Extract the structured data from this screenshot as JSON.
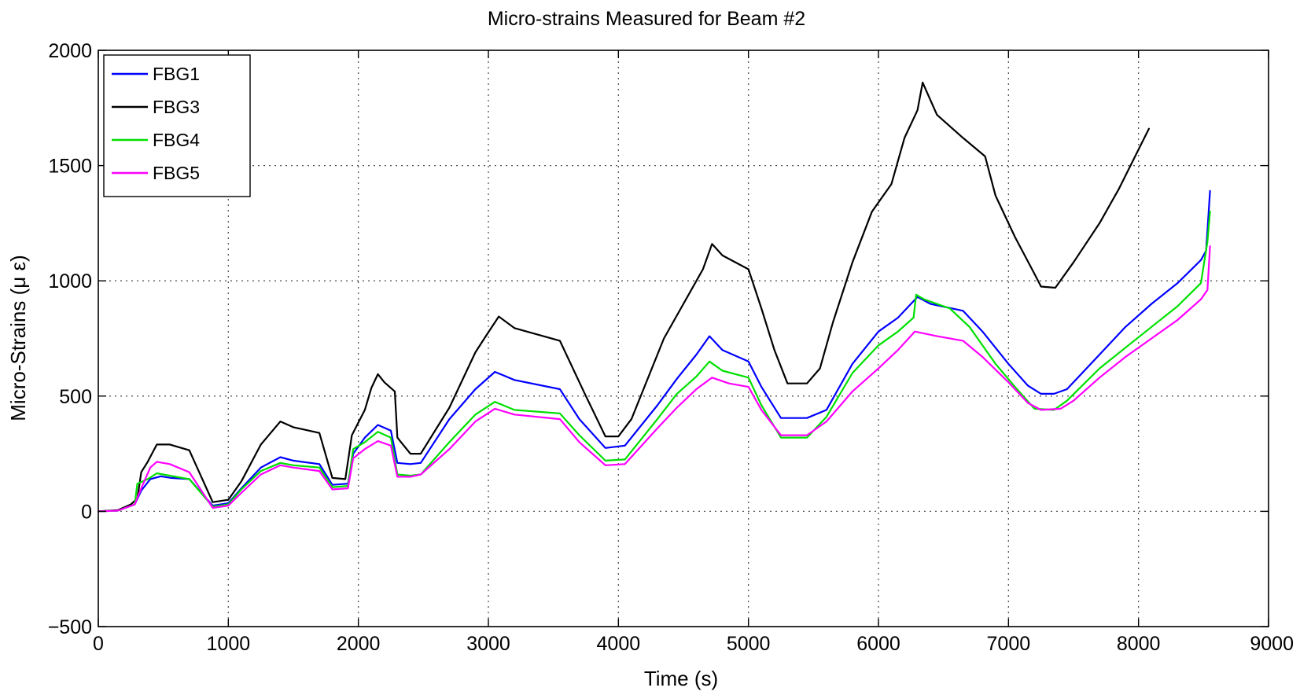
{
  "chart_data": {
    "type": "line",
    "title": "Micro-strains Measured for Beam #2",
    "xlabel": "Time (s)",
    "ylabel": "Micro-Strains (μ ε)",
    "xlim": [
      0,
      9000
    ],
    "ylim": [
      -500,
      2000
    ],
    "x_ticks": [
      0,
      1000,
      2000,
      3000,
      4000,
      5000,
      6000,
      7000,
      8000,
      9000
    ],
    "y_ticks": [
      -500,
      0,
      500,
      1000,
      1500,
      2000
    ],
    "x_tick_labels": [
      "0",
      "1000",
      "2000",
      "3000",
      "4000",
      "5000",
      "6000",
      "7000",
      "8000",
      "9000"
    ],
    "y_tick_labels": [
      "−500",
      "0",
      "500",
      "1000",
      "1500",
      "2000"
    ],
    "grid": true,
    "legend_position": "top-left",
    "series": [
      {
        "name": "FBG1",
        "color": "#0000ff",
        "points": [
          [
            0,
            0
          ],
          [
            150,
            3
          ],
          [
            280,
            30
          ],
          [
            330,
            90
          ],
          [
            400,
            140
          ],
          [
            480,
            152
          ],
          [
            560,
            145
          ],
          [
            700,
            140
          ],
          [
            880,
            25
          ],
          [
            1000,
            35
          ],
          [
            1100,
            100
          ],
          [
            1250,
            190
          ],
          [
            1400,
            235
          ],
          [
            1500,
            220
          ],
          [
            1700,
            205
          ],
          [
            1800,
            115
          ],
          [
            1920,
            120
          ],
          [
            1960,
            250
          ],
          [
            2050,
            320
          ],
          [
            2150,
            375
          ],
          [
            2250,
            350
          ],
          [
            2300,
            210
          ],
          [
            2400,
            205
          ],
          [
            2480,
            210
          ],
          [
            2700,
            400
          ],
          [
            2900,
            530
          ],
          [
            3050,
            605
          ],
          [
            3200,
            570
          ],
          [
            3550,
            530
          ],
          [
            3700,
            400
          ],
          [
            3900,
            275
          ],
          [
            4050,
            285
          ],
          [
            4300,
            460
          ],
          [
            4450,
            575
          ],
          [
            4600,
            680
          ],
          [
            4700,
            760
          ],
          [
            4800,
            700
          ],
          [
            5000,
            650
          ],
          [
            5100,
            540
          ],
          [
            5250,
            405
          ],
          [
            5450,
            405
          ],
          [
            5600,
            440
          ],
          [
            5800,
            640
          ],
          [
            6000,
            780
          ],
          [
            6150,
            840
          ],
          [
            6300,
            930
          ],
          [
            6400,
            900
          ],
          [
            6650,
            870
          ],
          [
            6800,
            780
          ],
          [
            7000,
            640
          ],
          [
            7150,
            545
          ],
          [
            7250,
            510
          ],
          [
            7350,
            510
          ],
          [
            7450,
            530
          ],
          [
            7700,
            680
          ],
          [
            7900,
            800
          ],
          [
            8100,
            900
          ],
          [
            8300,
            990
          ],
          [
            8480,
            1090
          ],
          [
            8520,
            1130
          ],
          [
            8540,
            1300
          ],
          [
            8550,
            1390
          ]
        ]
      },
      {
        "name": "FBG3",
        "color": "#000000",
        "points": [
          [
            0,
            0
          ],
          [
            150,
            5
          ],
          [
            250,
            30
          ],
          [
            300,
            55
          ],
          [
            330,
            170
          ],
          [
            380,
            215
          ],
          [
            450,
            290
          ],
          [
            550,
            290
          ],
          [
            700,
            265
          ],
          [
            880,
            40
          ],
          [
            1000,
            50
          ],
          [
            1100,
            130
          ],
          [
            1250,
            290
          ],
          [
            1400,
            390
          ],
          [
            1500,
            365
          ],
          [
            1700,
            340
          ],
          [
            1800,
            145
          ],
          [
            1900,
            140
          ],
          [
            1950,
            330
          ],
          [
            2050,
            440
          ],
          [
            2100,
            535
          ],
          [
            2150,
            595
          ],
          [
            2200,
            560
          ],
          [
            2280,
            520
          ],
          [
            2300,
            320
          ],
          [
            2400,
            250
          ],
          [
            2480,
            250
          ],
          [
            2700,
            450
          ],
          [
            2900,
            690
          ],
          [
            2980,
            760
          ],
          [
            3080,
            845
          ],
          [
            3200,
            795
          ],
          [
            3550,
            740
          ],
          [
            3750,
            500
          ],
          [
            3900,
            325
          ],
          [
            4000,
            325
          ],
          [
            4100,
            400
          ],
          [
            4350,
            750
          ],
          [
            4500,
            900
          ],
          [
            4650,
            1050
          ],
          [
            4720,
            1160
          ],
          [
            4800,
            1110
          ],
          [
            5000,
            1050
          ],
          [
            5100,
            880
          ],
          [
            5200,
            700
          ],
          [
            5300,
            555
          ],
          [
            5450,
            555
          ],
          [
            5550,
            620
          ],
          [
            5650,
            820
          ],
          [
            5800,
            1080
          ],
          [
            5950,
            1300
          ],
          [
            6100,
            1420
          ],
          [
            6200,
            1620
          ],
          [
            6300,
            1740
          ],
          [
            6340,
            1860
          ],
          [
            6450,
            1720
          ],
          [
            6650,
            1620
          ],
          [
            6820,
            1540
          ],
          [
            6900,
            1370
          ],
          [
            7050,
            1190
          ],
          [
            7200,
            1030
          ],
          [
            7250,
            975
          ],
          [
            7360,
            970
          ],
          [
            7500,
            1080
          ],
          [
            7700,
            1250
          ],
          [
            7850,
            1400
          ],
          [
            8000,
            1570
          ],
          [
            8080,
            1660
          ]
        ]
      },
      {
        "name": "FBG4",
        "color": "#00e000",
        "points": [
          [
            0,
            0
          ],
          [
            150,
            3
          ],
          [
            280,
            30
          ],
          [
            300,
            120
          ],
          [
            380,
            140
          ],
          [
            450,
            165
          ],
          [
            550,
            155
          ],
          [
            700,
            140
          ],
          [
            880,
            20
          ],
          [
            1000,
            30
          ],
          [
            1100,
            95
          ],
          [
            1250,
            175
          ],
          [
            1400,
            210
          ],
          [
            1500,
            200
          ],
          [
            1700,
            190
          ],
          [
            1800,
            105
          ],
          [
            1920,
            110
          ],
          [
            1960,
            270
          ],
          [
            2050,
            300
          ],
          [
            2150,
            345
          ],
          [
            2250,
            320
          ],
          [
            2300,
            160
          ],
          [
            2400,
            155
          ],
          [
            2480,
            160
          ],
          [
            2700,
            300
          ],
          [
            2900,
            420
          ],
          [
            3050,
            475
          ],
          [
            3200,
            440
          ],
          [
            3550,
            425
          ],
          [
            3700,
            330
          ],
          [
            3900,
            220
          ],
          [
            4050,
            225
          ],
          [
            4300,
            400
          ],
          [
            4450,
            510
          ],
          [
            4600,
            585
          ],
          [
            4700,
            650
          ],
          [
            4800,
            610
          ],
          [
            5000,
            580
          ],
          [
            5100,
            460
          ],
          [
            5250,
            320
          ],
          [
            5450,
            320
          ],
          [
            5600,
            410
          ],
          [
            5800,
            600
          ],
          [
            6000,
            720
          ],
          [
            6150,
            780
          ],
          [
            6270,
            840
          ],
          [
            6290,
            940
          ],
          [
            6350,
            920
          ],
          [
            6550,
            880
          ],
          [
            6700,
            800
          ],
          [
            6900,
            640
          ],
          [
            7050,
            540
          ],
          [
            7200,
            445
          ],
          [
            7350,
            440
          ],
          [
            7450,
            480
          ],
          [
            7700,
            620
          ],
          [
            7900,
            710
          ],
          [
            8100,
            800
          ],
          [
            8300,
            890
          ],
          [
            8480,
            990
          ],
          [
            8530,
            1170
          ],
          [
            8550,
            1300
          ]
        ]
      },
      {
        "name": "FBG5",
        "color": "#ff00ff",
        "points": [
          [
            0,
            0
          ],
          [
            150,
            3
          ],
          [
            280,
            30
          ],
          [
            330,
            100
          ],
          [
            400,
            190
          ],
          [
            450,
            215
          ],
          [
            550,
            205
          ],
          [
            700,
            170
          ],
          [
            880,
            15
          ],
          [
            1000,
            25
          ],
          [
            1100,
            80
          ],
          [
            1250,
            160
          ],
          [
            1400,
            200
          ],
          [
            1500,
            190
          ],
          [
            1700,
            175
          ],
          [
            1800,
            95
          ],
          [
            1920,
            100
          ],
          [
            1960,
            230
          ],
          [
            2050,
            270
          ],
          [
            2150,
            305
          ],
          [
            2250,
            285
          ],
          [
            2300,
            150
          ],
          [
            2400,
            150
          ],
          [
            2480,
            160
          ],
          [
            2700,
            270
          ],
          [
            2900,
            390
          ],
          [
            3050,
            445
          ],
          [
            3200,
            420
          ],
          [
            3550,
            400
          ],
          [
            3700,
            300
          ],
          [
            3900,
            200
          ],
          [
            4050,
            205
          ],
          [
            4300,
            360
          ],
          [
            4450,
            450
          ],
          [
            4600,
            530
          ],
          [
            4720,
            580
          ],
          [
            4850,
            555
          ],
          [
            5000,
            540
          ],
          [
            5100,
            440
          ],
          [
            5250,
            330
          ],
          [
            5450,
            330
          ],
          [
            5600,
            390
          ],
          [
            5800,
            520
          ],
          [
            6000,
            620
          ],
          [
            6150,
            700
          ],
          [
            6280,
            780
          ],
          [
            6450,
            760
          ],
          [
            6650,
            740
          ],
          [
            6800,
            670
          ],
          [
            7000,
            560
          ],
          [
            7150,
            470
          ],
          [
            7250,
            440
          ],
          [
            7400,
            445
          ],
          [
            7500,
            480
          ],
          [
            7700,
            580
          ],
          [
            7900,
            670
          ],
          [
            8100,
            750
          ],
          [
            8300,
            830
          ],
          [
            8480,
            920
          ],
          [
            8530,
            960
          ],
          [
            8550,
            1150
          ]
        ]
      }
    ]
  }
}
